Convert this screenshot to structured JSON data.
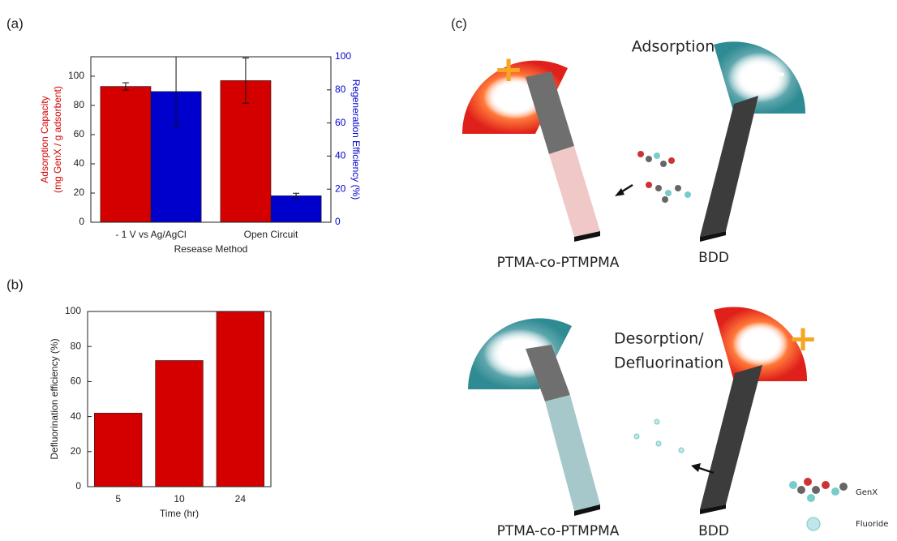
{
  "panels": [
    "(a)",
    "(b)",
    "(c)"
  ],
  "chart_data": [
    {
      "type": "bar",
      "categories": [
        "- 1 V vs Ag/AgCl",
        "Open Circuit"
      ],
      "xlabel": "Resease Method",
      "ylabel": [
        "Adsorption Capacity",
        "(mg GenX / g adsorbent)"
      ],
      "y2label": "Regeneration Efficiency (%)",
      "ylim": [
        0,
        113.3
      ],
      "yticks": [
        0,
        20,
        40,
        60,
        80,
        100
      ],
      "y2lim": [
        0,
        100
      ],
      "y2ticks": [
        0,
        20,
        40,
        60,
        80,
        100
      ],
      "series": [
        {
          "color": "#d40000",
          "values": [
            93,
            97
          ],
          "errors": [
            2.5,
            15.5
          ]
        },
        {
          "color": "#0000cc",
          "axis": "y2",
          "values": [
            79,
            16
          ],
          "errors": [
            21,
            1.5
          ]
        }
      ]
    },
    {
      "type": "bar",
      "categories": [
        "5",
        "10",
        "24"
      ],
      "xlabel": "Time (hr)",
      "ylabel": [
        "Defluorination efficiency (%)"
      ],
      "ylim": [
        0,
        100
      ],
      "yticks": [
        0,
        20,
        40,
        60,
        80,
        100
      ],
      "series": [
        {
          "color": "#d40000",
          "values": [
            42,
            72,
            100
          ]
        }
      ]
    }
  ],
  "diagram": {
    "adsorption": {
      "title": "Adsorption",
      "left_electrode": "PTMA-co-PTMPMA",
      "right_electrode": "BDD",
      "left_charge": "+",
      "right_charge": "-"
    },
    "desorption": {
      "title_lines": [
        "Desorption/",
        "Defluorination"
      ],
      "left_electrode": "PTMA-co-PTMPMA",
      "right_electrode": "BDD",
      "left_charge": "-",
      "right_charge": "+"
    },
    "legend": [
      "GenX",
      "Fluoride"
    ]
  }
}
